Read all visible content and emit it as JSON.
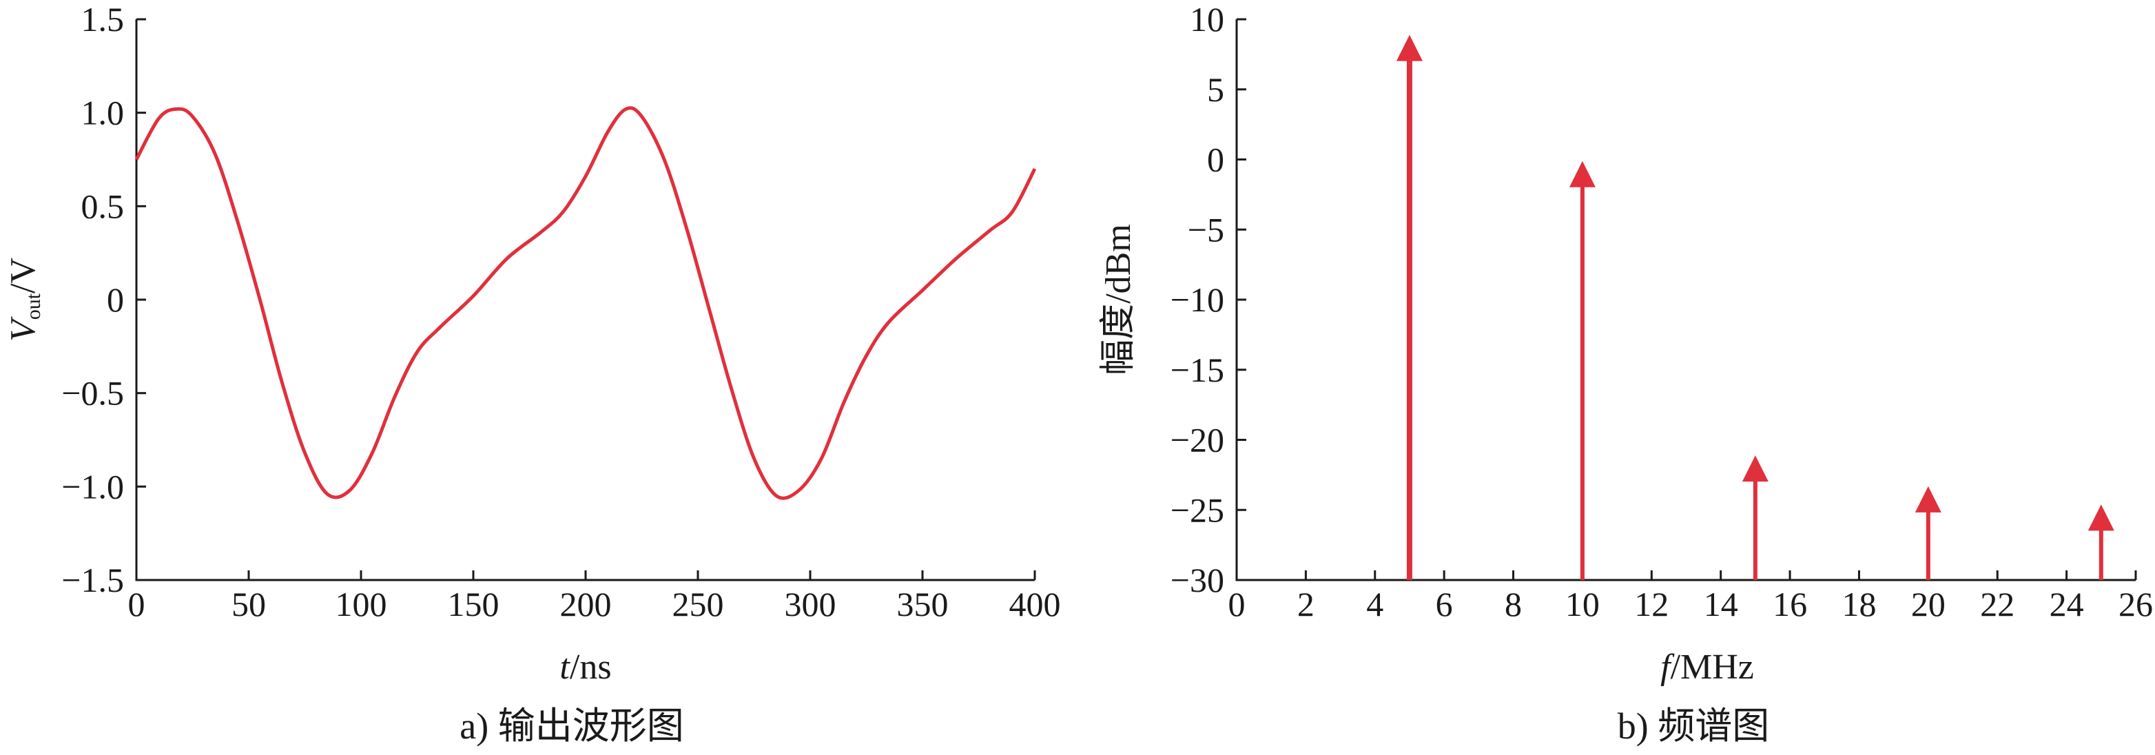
{
  "colors": {
    "series": "#e0303c",
    "axis": "#1a1a1a"
  },
  "chart_data": [
    {
      "type": "line",
      "caption": "a) 输出波形图",
      "xlabel_italic": "t",
      "xlabel_rest": "/ns",
      "ylabel_italic": "V",
      "ylabel_sub": "out",
      "ylabel_rest": "/V",
      "xlim": [
        0,
        400
      ],
      "ylim": [
        -1.5,
        1.5
      ],
      "xticks": [
        0,
        50,
        100,
        150,
        200,
        250,
        300,
        350,
        400
      ],
      "yticks": [
        -1.5,
        -1.0,
        -0.5,
        0,
        0.5,
        1.0,
        1.5
      ],
      "ytick_labels": [
        "−1.5",
        "−1.0",
        "−0.5",
        "0",
        "0.5",
        "1.0",
        "1.5"
      ],
      "series": [
        {
          "x": [
            0,
            10,
            18,
            25,
            35,
            45,
            55,
            65,
            75,
            85,
            95,
            105,
            115,
            125,
            135,
            150,
            165,
            180,
            190,
            200,
            210,
            218,
            225,
            235,
            245,
            255,
            265,
            275,
            285,
            295,
            305,
            315,
            325,
            335,
            350,
            365,
            380,
            390,
            400
          ],
          "y": [
            0.75,
            0.97,
            1.02,
            0.98,
            0.78,
            0.42,
            0.0,
            -0.45,
            -0.82,
            -1.04,
            -1.02,
            -0.82,
            -0.52,
            -0.28,
            -0.15,
            0.02,
            0.22,
            0.36,
            0.47,
            0.66,
            0.9,
            1.02,
            0.98,
            0.75,
            0.38,
            -0.05,
            -0.48,
            -0.85,
            -1.05,
            -1.02,
            -0.85,
            -0.55,
            -0.3,
            -0.12,
            0.05,
            0.22,
            0.37,
            0.47,
            0.7
          ]
        }
      ]
    },
    {
      "type": "stem",
      "caption": "b) 频谱图",
      "xlabel_italic": "f",
      "xlabel_rest": "/MHz",
      "ylabel": "幅度/dBm",
      "xlim": [
        0,
        26
      ],
      "ylim": [
        -30,
        10
      ],
      "xticks": [
        0,
        2,
        4,
        6,
        8,
        10,
        12,
        14,
        16,
        18,
        20,
        22,
        24,
        26
      ],
      "yticks": [
        -30,
        -25,
        -20,
        -15,
        -10,
        -5,
        0,
        5,
        10
      ],
      "ytick_labels": [
        "−30",
        "−25",
        "−20",
        "−15",
        "−10",
        "−5",
        "0",
        "5",
        "10"
      ],
      "series": [
        {
          "x": [
            5,
            10,
            15,
            20,
            25
          ],
          "y": [
            8.2,
            -0.8,
            -21.8,
            -24,
            -25.3
          ]
        }
      ]
    }
  ]
}
